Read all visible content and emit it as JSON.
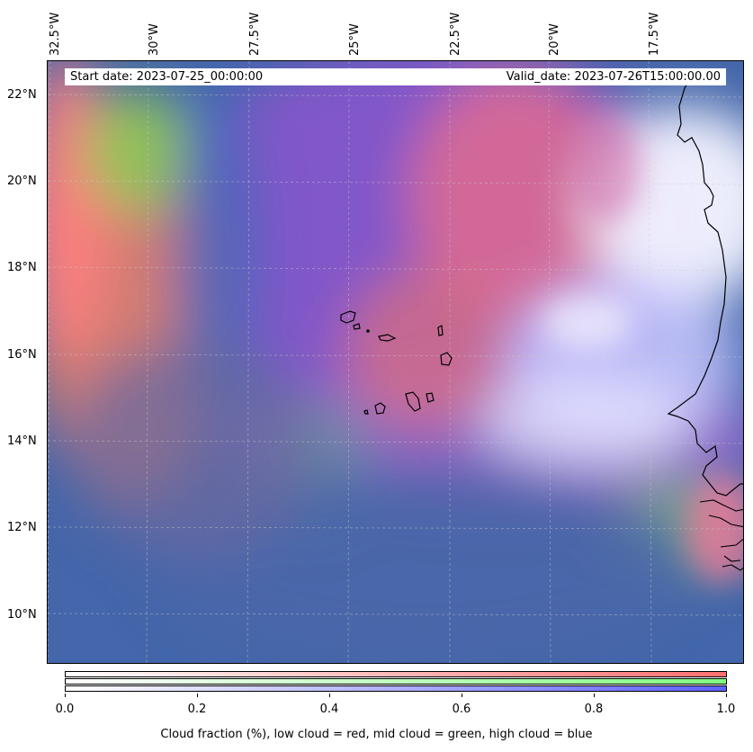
{
  "map": {
    "type": "cloud_fraction_map",
    "start_date": "Start date: 2023-07-25_00:00:00",
    "valid_date": "Valid_date: 2023-07-26T15:00:00.00",
    "longitude_labels": [
      "32.5°W",
      "30°W",
      "27.5°W",
      "25°W",
      "22.5°W",
      "20°W",
      "17.5°W"
    ],
    "latitude_labels": [
      "22°N",
      "20°N",
      "18°N",
      "16°N",
      "14°N",
      "12°N",
      "10°N"
    ],
    "grid": "on",
    "colors": {
      "low_cloud": "#ff7070",
      "mid_cloud": "#80ff80",
      "high_cloud": "#6060ff",
      "background": "#4466aa"
    }
  },
  "colorbar": {
    "ticks": [
      "0.0",
      "0.2",
      "0.4",
      "0.6",
      "0.8",
      "1.0"
    ],
    "label": "Cloud fraction (%), low cloud = red, mid cloud = green, high cloud = blue"
  }
}
